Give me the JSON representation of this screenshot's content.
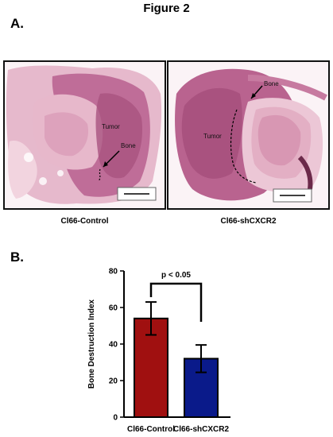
{
  "figure": {
    "title": "Figure 2",
    "panel_a_label": "A.",
    "panel_b_label": "B."
  },
  "panel_a": {
    "left_image": {
      "tumor_label": "Tumor",
      "bone_label": "Bone",
      "caption": "Cl66-Control"
    },
    "right_image": {
      "tumor_label": "Tumor",
      "bone_label": "Bone",
      "caption": "Cl66-shCXCR2"
    }
  },
  "colors": {
    "bar_control": "#a01010",
    "bar_shcxcr2": "#0a1a8a",
    "tissue_dark": "#b05a86",
    "tissue_light": "#e9bcd0"
  },
  "chart_data": {
    "type": "bar",
    "categories": [
      "Cl66-Control",
      "Cl66-shCXCR2"
    ],
    "values": [
      54,
      32
    ],
    "error": [
      9,
      7.5
    ],
    "ylabel": "Bone Destruction Index",
    "xlabel": "",
    "ylim": [
      0,
      80
    ],
    "yticks": [
      0,
      20,
      40,
      60,
      80
    ],
    "significance": "p < 0.05",
    "grid": false
  }
}
